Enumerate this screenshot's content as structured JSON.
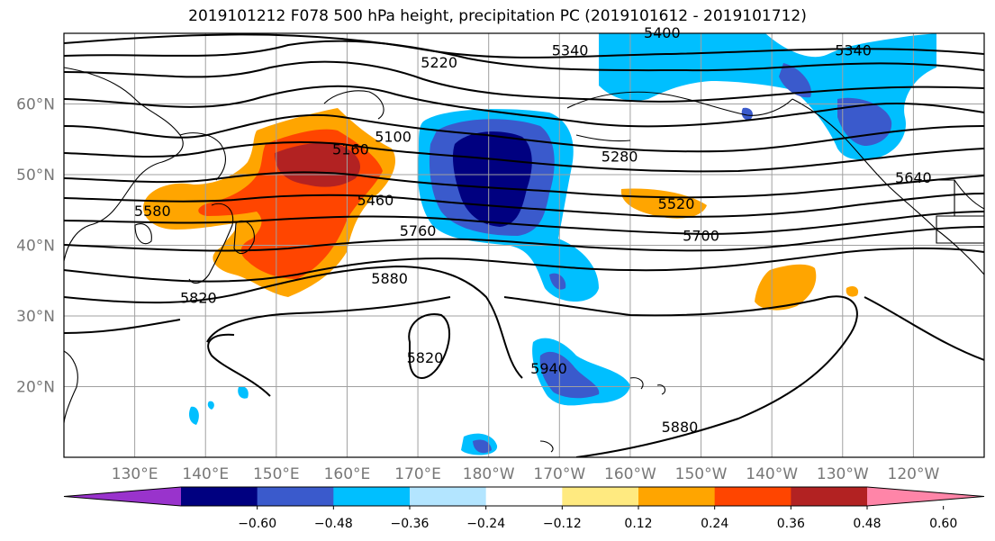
{
  "title": "2019101212 F078 500 hPa height, precipitation PC (2019101612 - 2019101712)",
  "map": {
    "lat_labels": [
      "60°N",
      "50°N",
      "40°N",
      "30°N",
      "20°N"
    ],
    "lon_labels": [
      "130°E",
      "140°E",
      "150°E",
      "160°E",
      "170°E",
      "180°W",
      "170°W",
      "160°W",
      "150°W",
      "140°W",
      "130°W",
      "120°W"
    ],
    "lon_range": [
      120,
      250
    ],
    "lat_range": [
      10,
      70
    ],
    "contour_labels": [
      {
        "text": "5400",
        "lon": 204.5,
        "lat": 70
      },
      {
        "text": "5340",
        "lon": 191.5,
        "lat": 67.5
      },
      {
        "text": "5340",
        "lon": 231.5,
        "lat": 67.5
      },
      {
        "text": "5220",
        "lon": 173.0,
        "lat": 65.8
      },
      {
        "text": "5100",
        "lon": 166.5,
        "lat": 55.3
      },
      {
        "text": "5160",
        "lon": 160.5,
        "lat": 53.5
      },
      {
        "text": "5280",
        "lon": 198.5,
        "lat": 52.5
      },
      {
        "text": "5460",
        "lon": 164.0,
        "lat": 46.3
      },
      {
        "text": "5520",
        "lon": 206.5,
        "lat": 45.8
      },
      {
        "text": "5580",
        "lon": 132.5,
        "lat": 44.8
      },
      {
        "text": "5640",
        "lon": 240.0,
        "lat": 49.5
      },
      {
        "text": "5700",
        "lon": 210.0,
        "lat": 41.3
      },
      {
        "text": "5760",
        "lon": 170.0,
        "lat": 42.0
      },
      {
        "text": "5880",
        "lon": 166.0,
        "lat": 35.2
      },
      {
        "text": "5820",
        "lon": 139.0,
        "lat": 32.5
      },
      {
        "text": "5820",
        "lon": 171.0,
        "lat": 24.0
      },
      {
        "text": "5940",
        "lon": 188.5,
        "lat": 22.5
      },
      {
        "text": "5880",
        "lon": 207.0,
        "lat": 14.2
      }
    ]
  },
  "colorbar": {
    "tick_labels": [
      "−0.60",
      "−0.48",
      "−0.36",
      "−0.24",
      "−0.12",
      "0.12",
      "0.24",
      "0.36",
      "0.48",
      "0.60"
    ],
    "colors": [
      "#9933cc",
      "#000080",
      "#3a5acc",
      "#00bfff",
      "#b3e5ff",
      "#ffffff",
      "#ffea80",
      "#ffa500",
      "#ff4500",
      "#b22222",
      "#ff85a8"
    ]
  }
}
